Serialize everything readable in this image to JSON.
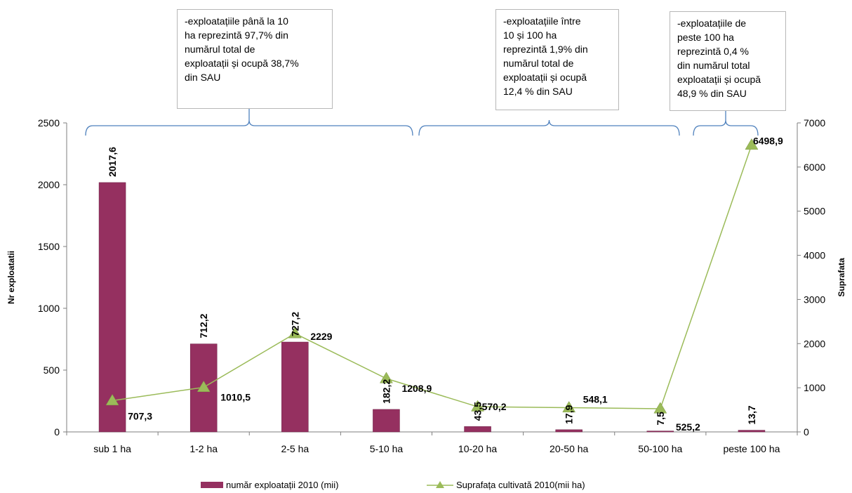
{
  "callouts": [
    "-exploatațiile până la 10\nha reprezintă 97,7% din\nnumărul total  de\nexploatații și ocupă 38,7%\ndin SAU",
    "-exploatațiile între\n10 și 100 ha\nreprezintă 1,9% din\nnumărul  total de\nexploatații și ocupă\n12,4 % din SAU",
    "-exploatațiile de\npeste 100 ha\nreprezintă 0,4 %\ndin numărul total\nexploatații și ocupă\n48,9 % din SAU"
  ],
  "chart_data": {
    "type": "bar",
    "categories": [
      "sub 1 ha",
      "1-2 ha",
      "2-5 ha",
      "5-10 ha",
      "10-20 ha",
      "20-50 ha",
      "50-100 ha",
      "peste 100 ha"
    ],
    "series": [
      {
        "name": "număr exploatații 2010 (mii)",
        "type": "bar",
        "axis": "left",
        "values": [
          2017.6,
          712.2,
          727.2,
          182.2,
          43.5,
          17.9,
          7.5,
          13.7
        ],
        "labels": [
          "2017,6",
          "712,2",
          "727,2",
          "182,2",
          "43,5",
          "17,9",
          "7,5",
          "13,7"
        ],
        "color": "#953060"
      },
      {
        "name": "Suprafața cultivată 2010(mii ha)",
        "type": "line",
        "axis": "right",
        "values": [
          707.3,
          1010.5,
          2229,
          1208.9,
          570.2,
          548.1,
          525.2,
          6498.9
        ],
        "labels": [
          "707,3",
          "1010,5",
          "2229",
          "1208,9",
          "570,2",
          "548,1",
          "525,2",
          "6498,9"
        ],
        "color": "#9bbb59"
      }
    ],
    "ylabel": "Nr exploatatii",
    "y2label": "Suprafata",
    "ylim": [
      0,
      2500
    ],
    "yticks": [
      0,
      500,
      1000,
      1500,
      2000,
      2500
    ],
    "y2lim": [
      0,
      7000
    ],
    "y2ticks": [
      0,
      1000,
      2000,
      3000,
      4000,
      5000,
      6000,
      7000
    ],
    "grid": false,
    "legend": "bottom"
  }
}
